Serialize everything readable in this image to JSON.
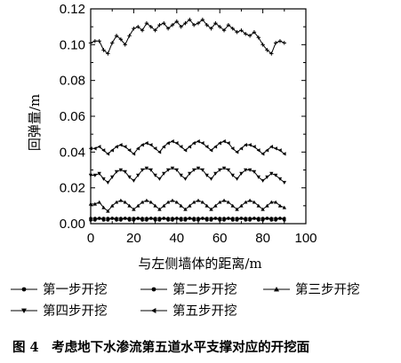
{
  "chart_data": {
    "type": "line",
    "xlabel": "与左侧墙体的距离/m",
    "ylabel": "回弹量/m",
    "xlim": [
      0,
      100
    ],
    "ylim": [
      0,
      0.12
    ],
    "xticks": [
      "0",
      "20",
      "40",
      "60",
      "80",
      "100"
    ],
    "yticks": [
      "0.00",
      "0.02",
      "0.04",
      "0.06",
      "0.08",
      "0.10",
      "0.12"
    ],
    "grid": false,
    "legend_position": "bottom",
    "x": [
      0,
      2,
      4,
      6,
      8,
      10,
      12,
      14,
      16,
      18,
      20,
      22,
      24,
      26,
      28,
      30,
      32,
      34,
      36,
      38,
      40,
      42,
      44,
      46,
      48,
      50,
      52,
      54,
      56,
      58,
      60,
      62,
      64,
      66,
      68,
      70,
      72,
      74,
      76,
      78,
      80,
      82,
      84,
      86,
      88,
      90
    ],
    "series": [
      {
        "name": "第一步开挖",
        "marker": "dot",
        "values": [
          0.002,
          0.002,
          0.003,
          0.002,
          0.002,
          0.003,
          0.002,
          0.002,
          0.003,
          0.002,
          0.002,
          0.003,
          0.002,
          0.002,
          0.003,
          0.002,
          0.002,
          0.003,
          0.002,
          0.002,
          0.003,
          0.002,
          0.002,
          0.003,
          0.002,
          0.002,
          0.003,
          0.002,
          0.002,
          0.003,
          0.002,
          0.002,
          0.003,
          0.002,
          0.002,
          0.003,
          0.002,
          0.002,
          0.003,
          0.002,
          0.002,
          0.003,
          0.002,
          0.002,
          0.003,
          0.002
        ]
      },
      {
        "name": "第二步开挖",
        "marker": "dot",
        "values": [
          0.003,
          0.003,
          0.003,
          0.003,
          0.003,
          0.003,
          0.003,
          0.003,
          0.003,
          0.003,
          0.003,
          0.003,
          0.003,
          0.003,
          0.003,
          0.003,
          0.003,
          0.003,
          0.003,
          0.003,
          0.003,
          0.003,
          0.003,
          0.003,
          0.003,
          0.003,
          0.003,
          0.003,
          0.003,
          0.003,
          0.003,
          0.003,
          0.003,
          0.003,
          0.003,
          0.003,
          0.003,
          0.003,
          0.003,
          0.003,
          0.003,
          0.003,
          0.003,
          0.003,
          0.003,
          0.003
        ]
      },
      {
        "name": "第三步开挖",
        "marker": "triangle-up",
        "values": [
          0.011,
          0.011,
          0.012,
          0.009,
          0.007,
          0.01,
          0.012,
          0.013,
          0.012,
          0.01,
          0.008,
          0.01,
          0.012,
          0.013,
          0.012,
          0.01,
          0.008,
          0.01,
          0.012,
          0.013,
          0.012,
          0.01,
          0.008,
          0.01,
          0.012,
          0.013,
          0.012,
          0.01,
          0.008,
          0.01,
          0.012,
          0.013,
          0.012,
          0.01,
          0.008,
          0.01,
          0.012,
          0.013,
          0.012,
          0.01,
          0.008,
          0.01,
          0.012,
          0.012,
          0.01,
          0.009
        ]
      },
      {
        "name": "第四步开挖",
        "marker": "triangle-down",
        "values": [
          0.027,
          0.027,
          0.028,
          0.025,
          0.023,
          0.026,
          0.029,
          0.03,
          0.029,
          0.026,
          0.024,
          0.027,
          0.03,
          0.031,
          0.03,
          0.027,
          0.025,
          0.028,
          0.03,
          0.031,
          0.03,
          0.027,
          0.025,
          0.028,
          0.03,
          0.031,
          0.03,
          0.027,
          0.025,
          0.028,
          0.03,
          0.031,
          0.03,
          0.027,
          0.025,
          0.028,
          0.03,
          0.03,
          0.029,
          0.026,
          0.024,
          0.026,
          0.028,
          0.027,
          0.025,
          0.023
        ]
      },
      {
        "name": "第五步开挖",
        "marker": "triangle-left",
        "values": [
          0.042,
          0.042,
          0.043,
          0.041,
          0.039,
          0.041,
          0.043,
          0.044,
          0.043,
          0.041,
          0.039,
          0.042,
          0.044,
          0.045,
          0.044,
          0.042,
          0.04,
          0.043,
          0.045,
          0.046,
          0.045,
          0.043,
          0.041,
          0.043,
          0.045,
          0.046,
          0.045,
          0.043,
          0.041,
          0.043,
          0.045,
          0.046,
          0.045,
          0.042,
          0.04,
          0.042,
          0.044,
          0.044,
          0.043,
          0.041,
          0.039,
          0.041,
          0.043,
          0.042,
          0.041,
          0.039
        ]
      },
      {
        "name": "",
        "marker": "cross",
        "values": [
          0.101,
          0.102,
          0.102,
          0.097,
          0.095,
          0.101,
          0.105,
          0.103,
          0.1,
          0.105,
          0.109,
          0.11,
          0.108,
          0.112,
          0.11,
          0.108,
          0.111,
          0.112,
          0.109,
          0.111,
          0.113,
          0.11,
          0.112,
          0.114,
          0.111,
          0.112,
          0.114,
          0.111,
          0.109,
          0.112,
          0.11,
          0.108,
          0.111,
          0.109,
          0.107,
          0.108,
          0.106,
          0.105,
          0.107,
          0.104,
          0.1,
          0.097,
          0.095,
          0.101,
          0.102,
          0.101
        ]
      }
    ]
  },
  "legend": {
    "items": [
      {
        "label": "第一步开挖",
        "marker": "dot"
      },
      {
        "label": "第二步开挖",
        "marker": "dot"
      },
      {
        "label": "第三步开挖",
        "marker": "triangle-up"
      },
      {
        "label": "第四步开挖",
        "marker": "triangle-down"
      },
      {
        "label": "第五步开挖",
        "marker": "triangle-left"
      }
    ]
  },
  "caption": "图 4　考虑地下水渗流第五道水平支撑对应的开挖面"
}
